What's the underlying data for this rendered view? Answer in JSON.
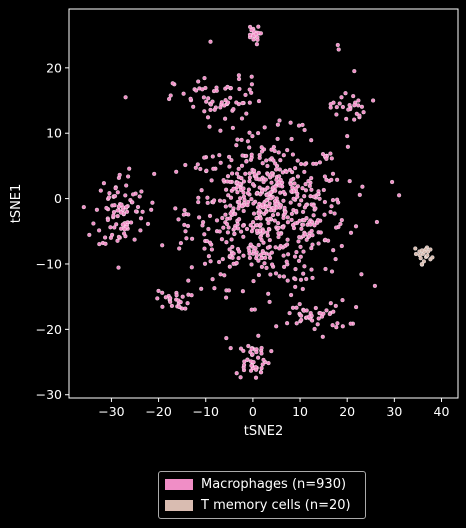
{
  "chart_data": {
    "type": "scatter",
    "xlabel": "tSNE2",
    "ylabel": "tSNE1",
    "xlim": [
      -39,
      43.5
    ],
    "ylim": [
      -30.5,
      29
    ],
    "xticks": [
      -30,
      -20,
      -10,
      0,
      10,
      20,
      30,
      40
    ],
    "yticks": [
      -30,
      -20,
      -10,
      0,
      10,
      20
    ],
    "grid": false,
    "legend_position": "bottom-center",
    "series": [
      {
        "name": "Macrophages (n=930)",
        "color": "#f08ec6",
        "count": 930
      },
      {
        "name": "T memory cells (n=20)",
        "color": "#d9bcb1",
        "count": 20
      }
    ],
    "clusters": [
      {
        "series": 0,
        "center": [
          3,
          -2
        ],
        "spread": [
          14,
          9.5
        ],
        "n": 620
      },
      {
        "series": 0,
        "center": [
          -28,
          -2
        ],
        "spread": [
          4.5,
          5
        ],
        "n": 90
      },
      {
        "series": 0,
        "center": [
          0,
          -24.5
        ],
        "spread": [
          3,
          2.5
        ],
        "n": 45
      },
      {
        "series": 0,
        "center": [
          0,
          25
        ],
        "spread": [
          1.2,
          1.2
        ],
        "n": 20
      },
      {
        "series": 0,
        "center": [
          -17,
          -15.5
        ],
        "spread": [
          3,
          1.2
        ],
        "n": 25
      },
      {
        "series": 0,
        "center": [
          20,
          14
        ],
        "spread": [
          3,
          2
        ],
        "n": 25
      },
      {
        "series": 0,
        "center": [
          -7,
          15
        ],
        "spread": [
          8,
          3
        ],
        "n": 60
      },
      {
        "series": 0,
        "center": [
          13,
          -18
        ],
        "spread": [
          6,
          2
        ],
        "n": 45
      },
      {
        "series": 1,
        "center": [
          36.5,
          -8.5
        ],
        "spread": [
          1.8,
          1.2
        ],
        "n": 20
      }
    ],
    "outliers": [
      {
        "series": 0,
        "x": 18,
        "y": 23.5
      },
      {
        "series": 0,
        "x": 18.2,
        "y": 22.8
      },
      {
        "series": 0,
        "x": 21.5,
        "y": 19.5
      },
      {
        "series": 0,
        "x": -9,
        "y": 24
      },
      {
        "series": 0,
        "x": -27,
        "y": 15.5
      },
      {
        "series": 0,
        "x": 25.5,
        "y": 15
      },
      {
        "series": 0,
        "x": 31,
        "y": 0.5
      }
    ]
  },
  "legend": {
    "items": [
      {
        "label": "Macrophages (n=930)",
        "color": "#f08ec6"
      },
      {
        "label": "T memory cells (n=20)",
        "color": "#d9bcb1"
      }
    ]
  }
}
